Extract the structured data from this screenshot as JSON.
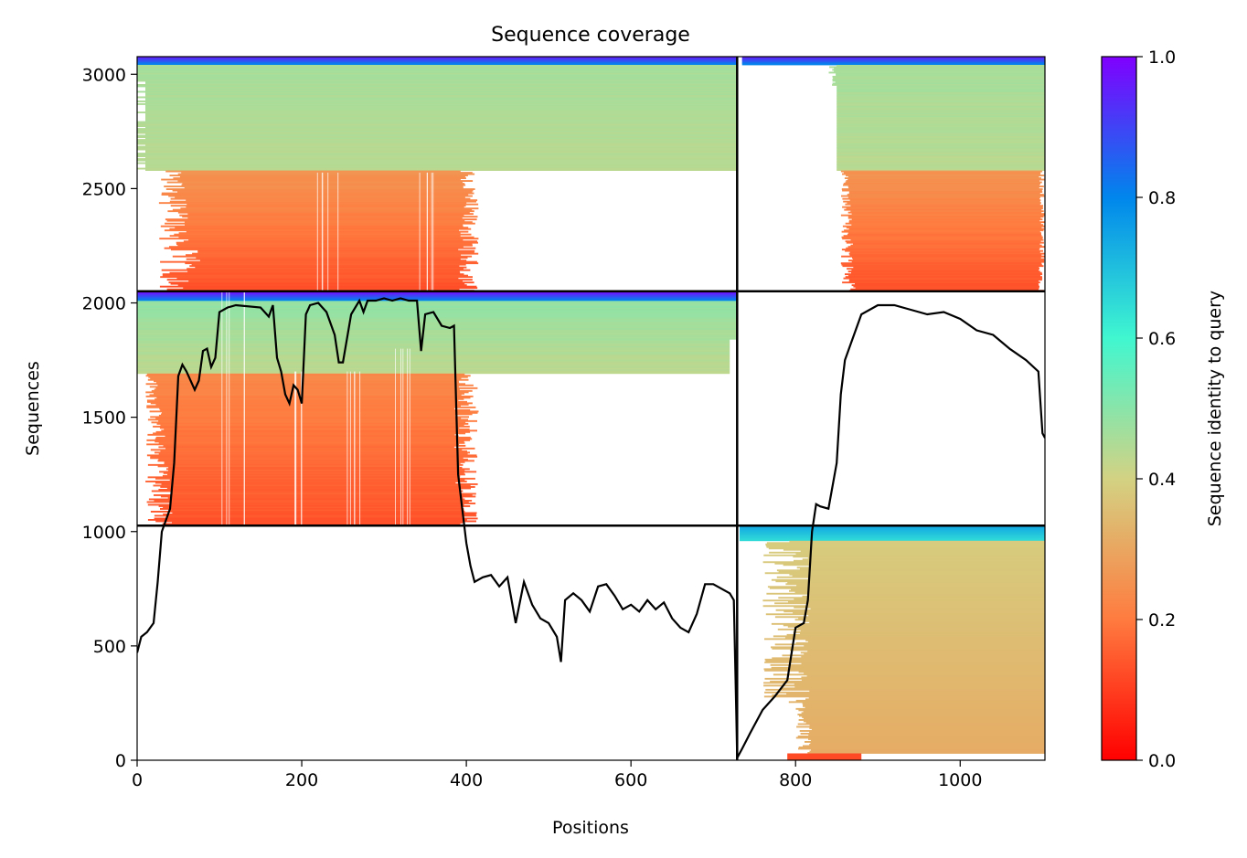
{
  "chart_data": {
    "type": "heatmap",
    "title": "Sequence coverage",
    "xlabel": "Positions",
    "ylabel": "Sequences",
    "xlim": [
      0,
      1103
    ],
    "ylim": [
      0,
      3077
    ],
    "xticks": [
      0,
      200,
      400,
      600,
      800,
      1000
    ],
    "yticks": [
      0,
      500,
      1000,
      1500,
      2000,
      2500,
      3000
    ],
    "colorbar": {
      "label": "Sequence identity to query",
      "range": [
        0.0,
        1.0
      ],
      "ticks": [
        "0.0",
        "0.2",
        "0.4",
        "0.6",
        "0.8",
        "1.0"
      ],
      "colormap": "rainbow_r",
      "stops": [
        "#ff0000",
        "#ff7b3f",
        "#d3d283",
        "#40f7d0",
        "#0086ec",
        "#8000ff"
      ]
    },
    "grid": false,
    "dividers": {
      "vertical_x": 729,
      "horizontal_y": [
        1026,
        2051
      ]
    },
    "blocks": [
      {
        "x": [
          0,
          729
        ],
        "y": [
          2051,
          3077
        ],
        "rows": "top-left",
        "identity_range": [
          0.1,
          0.95
        ]
      },
      {
        "x": [
          729,
          1103
        ],
        "y": [
          2051,
          3077
        ],
        "rows": "top-right",
        "identity_range": [
          0.1,
          0.95
        ]
      },
      {
        "x": [
          0,
          729
        ],
        "y": [
          1026,
          2051
        ],
        "rows": "middle-left",
        "identity_range": [
          0.1,
          0.95
        ]
      },
      {
        "x": [
          729,
          1103
        ],
        "y": [
          0,
          1026
        ],
        "rows": "bottom-right",
        "identity_range": [
          0.0,
          0.7
        ]
      }
    ],
    "coverage_line": {
      "x": [
        0,
        5,
        12,
        20,
        25,
        30,
        40,
        45,
        50,
        55,
        60,
        70,
        75,
        80,
        85,
        90,
        95,
        100,
        110,
        120,
        150,
        160,
        165,
        170,
        175,
        180,
        185,
        190,
        195,
        200,
        205,
        210,
        220,
        230,
        240,
        245,
        250,
        260,
        270,
        275,
        280,
        290,
        300,
        310,
        320,
        330,
        340,
        345,
        350,
        360,
        370,
        380,
        385,
        390,
        395,
        400,
        405,
        410,
        420,
        430,
        440,
        450,
        460,
        470,
        480,
        490,
        500,
        510,
        515,
        520,
        530,
        540,
        550,
        560,
        570,
        580,
        590,
        600,
        610,
        620,
        630,
        640,
        650,
        660,
        670,
        680,
        690,
        700,
        710,
        720,
        725,
        728,
        729,
        735,
        745,
        760,
        775,
        790,
        800,
        810,
        815,
        820,
        825,
        830,
        840,
        850,
        855,
        860,
        870,
        880,
        900,
        920,
        940,
        960,
        980,
        1000,
        1020,
        1040,
        1060,
        1080,
        1095,
        1100,
        1103
      ],
      "y": [
        470,
        540,
        560,
        600,
        780,
        1000,
        1100,
        1300,
        1680,
        1730,
        1700,
        1620,
        1660,
        1790,
        1800,
        1720,
        1760,
        1960,
        1980,
        1990,
        1980,
        1940,
        1990,
        1760,
        1700,
        1600,
        1560,
        1640,
        1620,
        1560,
        1950,
        1990,
        2000,
        1960,
        1860,
        1740,
        1740,
        1950,
        2010,
        1960,
        2010,
        2010,
        2020,
        2010,
        2020,
        2010,
        2010,
        1790,
        1950,
        1960,
        1900,
        1890,
        1900,
        1250,
        1100,
        950,
        850,
        780,
        800,
        810,
        760,
        800,
        600,
        780,
        680,
        620,
        600,
        540,
        430,
        700,
        730,
        700,
        650,
        760,
        770,
        720,
        660,
        680,
        650,
        700,
        660,
        690,
        620,
        580,
        560,
        640,
        770,
        770,
        750,
        730,
        700,
        200,
        10,
        50,
        120,
        220,
        280,
        350,
        580,
        600,
        700,
        1000,
        1120,
        1110,
        1100,
        1300,
        1600,
        1750,
        1850,
        1950,
        1990,
        1990,
        1970,
        1950,
        1960,
        1930,
        1880,
        1860,
        1800,
        1750,
        1700,
        1430,
        1410
      ]
    }
  }
}
